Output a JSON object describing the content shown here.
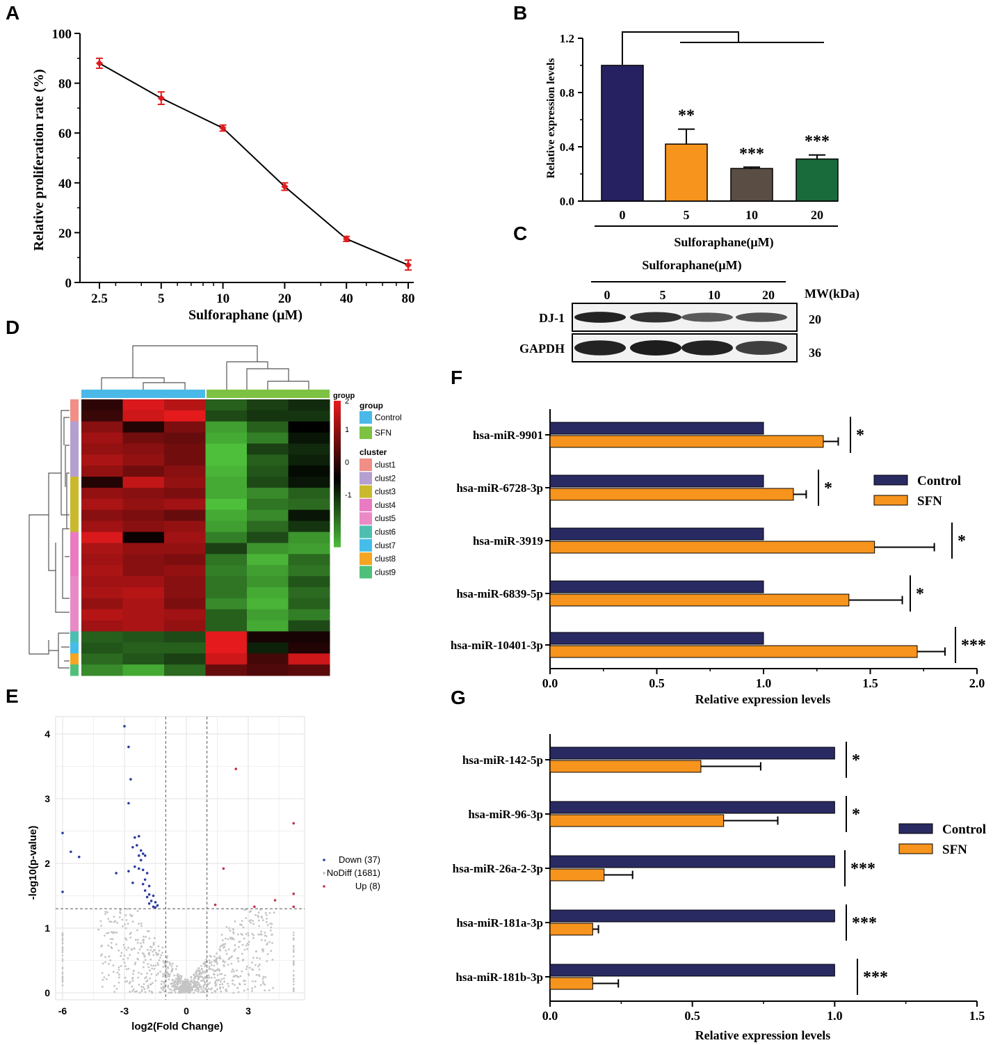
{
  "panel_letters": [
    "A",
    "B",
    "C",
    "D",
    "E",
    "F",
    "G"
  ],
  "colors": {
    "navy": "#262262",
    "orange": "#f7941d",
    "gray_brown": "#5a4d44",
    "dark_green": "#1a6b3c",
    "red_marker": "#e31a1c",
    "control_bar": "#2a2a63",
    "heat_high": "#e41a1c",
    "heat_low": "#4dbf3a",
    "control_group": "#4ab9e8",
    "sfn_group": "#7dc242"
  },
  "chart_data": [
    {
      "panel": "A",
      "type": "line",
      "ylabel": "Relative proliferation rate (%)",
      "xlabel": "Sulforaphane (μM)",
      "x": [
        2.5,
        5,
        10,
        20,
        40,
        80
      ],
      "x_tick_labels": [
        "2.5",
        "5",
        "10",
        "20",
        "40",
        "80"
      ],
      "values": [
        88,
        74,
        62,
        38.5,
        17.5,
        7
      ],
      "errors": [
        2,
        2.5,
        1.2,
        1.5,
        1,
        2
      ],
      "ylim": [
        0,
        100
      ],
      "y_ticks": [
        0,
        20,
        40,
        60,
        80,
        100
      ]
    },
    {
      "panel": "B",
      "type": "bar",
      "ylabel": "Relative expression levels",
      "xlabel": "Sulforaphane(μM)",
      "categories": [
        "0",
        "5",
        "10",
        "20"
      ],
      "values": [
        1.0,
        0.42,
        0.24,
        0.31
      ],
      "errors": [
        0,
        0.11,
        0.01,
        0.03
      ],
      "significance": [
        "",
        "**",
        "***",
        "***"
      ],
      "ylim": [
        0,
        1.2
      ],
      "y_ticks": [
        "0.0",
        "0.4",
        "0.8",
        "1.2"
      ]
    },
    {
      "panel": "F",
      "type": "bar",
      "orientation": "horizontal",
      "xlabel": "Relative expression levels",
      "categories": [
        "hsa-miR-9901",
        "hsa-miR-6728-3p",
        "hsa-miR-3919",
        "hsa-miR-6839-5p",
        "hsa-miR-10401-3p"
      ],
      "series": [
        {
          "name": "Control",
          "values": [
            1,
            1,
            1,
            1,
            1
          ],
          "errors": [
            0,
            0,
            0,
            0,
            0
          ]
        },
        {
          "name": "SFN",
          "values": [
            1.28,
            1.14,
            1.52,
            1.4,
            1.72
          ],
          "errors": [
            0.07,
            0.06,
            0.28,
            0.25,
            0.13
          ]
        }
      ],
      "significance": [
        "*",
        "*",
        "*",
        "*",
        "***"
      ],
      "xlim": [
        0,
        2.0
      ],
      "x_ticks": [
        "0.0",
        "0.5",
        "1.0",
        "1.5",
        "2.0"
      ]
    },
    {
      "panel": "G",
      "type": "bar",
      "orientation": "horizontal",
      "xlabel": "Relative expression levels",
      "categories": [
        "hsa-miR-142-5p",
        "hsa-miR-96-3p",
        "hsa-miR-26a-2-3p",
        "hsa-miR-181a-3p",
        "hsa-miR-181b-3p"
      ],
      "series": [
        {
          "name": "Control",
          "values": [
            1,
            1,
            1,
            1,
            1
          ],
          "errors": [
            0,
            0,
            0,
            0,
            0
          ]
        },
        {
          "name": "SFN",
          "values": [
            0.53,
            0.61,
            0.19,
            0.15,
            0.15
          ],
          "errors": [
            0.21,
            0.19,
            0.1,
            0.02,
            0.09
          ]
        }
      ],
      "significance": [
        "*",
        "*",
        "***",
        "***",
        "***"
      ],
      "xlim": [
        0,
        1.5
      ],
      "x_ticks": [
        "0.0",
        "0.5",
        "1.0",
        "1.5"
      ]
    },
    {
      "panel": "E",
      "type": "scatter",
      "xlabel": "log2(Fold Change)",
      "ylabel": "-log10(p-value)",
      "x_ticks": [
        "-6",
        "-3",
        "0",
        "3"
      ],
      "y_ticks": [
        "0",
        "1",
        "2",
        "3",
        "4"
      ],
      "xlim": [
        -6.3,
        5.6
      ],
      "ylim": [
        -0.1,
        4.3
      ],
      "thresholds": {
        "log2fc": [
          -1,
          1
        ],
        "neg_log10_p": 1.3
      },
      "legend": [
        {
          "label": "Down (37)",
          "color": "#2b3b9c"
        },
        {
          "label": "NoDiff (1681)",
          "color": "#bdbdbd"
        },
        {
          "label": "Up (8)",
          "color": "#c4314b"
        }
      ],
      "down_points": [
        [
          -3.0,
          4.12
        ],
        [
          -2.8,
          3.8
        ],
        [
          -2.7,
          3.3
        ],
        [
          -2.8,
          2.93
        ],
        [
          -6.0,
          2.47
        ],
        [
          -5.6,
          2.18
        ],
        [
          -5.2,
          2.1
        ],
        [
          -2.5,
          2.4
        ],
        [
          -2.3,
          2.42
        ],
        [
          -2.6,
          2.25
        ],
        [
          -2.4,
          2.28
        ],
        [
          -2.2,
          2.2
        ],
        [
          -2.1,
          2.15
        ],
        [
          -2.3,
          2.12
        ],
        [
          -2.0,
          2.12
        ],
        [
          -2.2,
          2.05
        ],
        [
          -3.4,
          1.85
        ],
        [
          -2.8,
          1.88
        ],
        [
          -2.5,
          1.95
        ],
        [
          -2.3,
          1.92
        ],
        [
          -2.1,
          1.9
        ],
        [
          -1.9,
          1.85
        ],
        [
          -2.0,
          1.75
        ],
        [
          -2.1,
          1.68
        ],
        [
          -1.8,
          1.65
        ],
        [
          -2.6,
          1.7
        ],
        [
          -2.0,
          1.58
        ],
        [
          -1.8,
          1.52
        ],
        [
          -1.6,
          1.5
        ],
        [
          -1.9,
          1.48
        ],
        [
          -1.7,
          1.42
        ],
        [
          -1.5,
          1.4
        ],
        [
          -1.6,
          1.33
        ],
        [
          -1.4,
          1.35
        ],
        [
          -1.8,
          1.38
        ],
        [
          -6.0,
          1.56
        ],
        [
          -1.5,
          1.32
        ]
      ],
      "up_points": [
        [
          2.4,
          3.46
        ],
        [
          5.2,
          2.62
        ],
        [
          1.8,
          1.92
        ],
        [
          5.2,
          1.53
        ],
        [
          4.3,
          1.43
        ],
        [
          3.3,
          1.33
        ],
        [
          5.2,
          1.33
        ],
        [
          1.4,
          1.36
        ]
      ]
    }
  ],
  "panel_c": {
    "title": "Sulforaphane(μM)",
    "lanes": [
      "0",
      "5",
      "10",
      "20"
    ],
    "mw_header": "MW(kDa)",
    "bands": [
      {
        "label": "DJ-1",
        "mw": "20",
        "intensities": [
          0.95,
          0.85,
          0.55,
          0.6
        ]
      },
      {
        "label": "GAPDH",
        "mw": "36",
        "intensities": [
          0.95,
          1.0,
          0.95,
          0.75
        ]
      }
    ]
  },
  "panel_d": {
    "group_title": "group",
    "cluster_title": "cluster",
    "groups": [
      {
        "label": "Control",
        "color": "#4ab9e8"
      },
      {
        "label": "SFN",
        "color": "#7dc242"
      }
    ],
    "clusters": [
      {
        "label": "clust1",
        "color": "#f08f86"
      },
      {
        "label": "clust2",
        "color": "#b59fd0"
      },
      {
        "label": "clust3",
        "color": "#c9b92c"
      },
      {
        "label": "clust4",
        "color": "#e87bc2"
      },
      {
        "label": "clust5",
        "color": "#e98ac6"
      },
      {
        "label": "clust6",
        "color": "#4dbfb0"
      },
      {
        "label": "clust7",
        "color": "#46bde9"
      },
      {
        "label": "clust8",
        "color": "#f4a622"
      },
      {
        "label": "clust9",
        "color": "#4fc07a"
      }
    ],
    "scale_title": "group",
    "scale_ticks": [
      "2",
      "1",
      "0",
      "-1"
    ],
    "row_clusters": [
      0,
      0,
      1,
      1,
      1,
      1,
      1,
      2,
      2,
      2,
      2,
      2,
      3,
      3,
      3,
      3,
      4,
      4,
      4,
      4,
      4,
      5,
      6,
      7,
      8
    ],
    "matrix": [
      [
        0.4,
        1.9,
        1.6,
        -0.9,
        -0.6,
        -0.4
      ],
      [
        0.5,
        1.8,
        2.0,
        -0.7,
        -0.5,
        -0.5
      ],
      [
        1.2,
        0.3,
        1.1,
        -1.5,
        -0.9,
        0.0
      ],
      [
        1.4,
        1.0,
        0.9,
        -1.6,
        -1.2,
        -0.2
      ],
      [
        1.3,
        1.2,
        1.0,
        -1.8,
        -0.6,
        -0.4
      ],
      [
        1.5,
        1.3,
        1.0,
        -1.8,
        -0.9,
        -0.3
      ],
      [
        1.3,
        1.0,
        1.2,
        -1.7,
        -0.8,
        -0.1
      ],
      [
        0.3,
        1.7,
        1.3,
        -1.6,
        -0.7,
        -0.2
      ],
      [
        1.3,
        1.2,
        1.1,
        -1.6,
        -1.3,
        -0.9
      ],
      [
        1.5,
        1.3,
        1.4,
        -1.8,
        -1.1,
        -1.0
      ],
      [
        1.2,
        1.1,
        0.9,
        -1.6,
        -1.3,
        -0.2
      ],
      [
        1.4,
        1.2,
        1.3,
        -1.5,
        -1.0,
        -0.5
      ],
      [
        1.9,
        0.1,
        1.4,
        -1.2,
        -0.7,
        -1.4
      ],
      [
        1.5,
        1.3,
        1.3,
        -0.6,
        -1.4,
        -1.5
      ],
      [
        1.4,
        1.2,
        1.1,
        -1.1,
        -1.7,
        -1.0
      ],
      [
        1.5,
        1.2,
        1.3,
        -1.2,
        -1.5,
        -1.1
      ],
      [
        1.4,
        1.4,
        1.2,
        -1.1,
        -1.4,
        -0.8
      ],
      [
        1.5,
        1.6,
        1.2,
        -1.1,
        -1.6,
        -1.0
      ],
      [
        1.3,
        1.5,
        1.1,
        -1.3,
        -1.7,
        -0.9
      ],
      [
        1.6,
        1.5,
        1.4,
        -0.9,
        -1.5,
        -1.2
      ],
      [
        1.4,
        1.5,
        1.3,
        -0.9,
        -1.6,
        -0.7
      ],
      [
        -0.9,
        -0.8,
        -0.7,
        2.0,
        0.2,
        0.2
      ],
      [
        -0.8,
        -0.9,
        -0.9,
        2.0,
        -0.3,
        0.3
      ],
      [
        -1.0,
        -0.8,
        -0.6,
        1.8,
        0.6,
        1.8
      ],
      [
        -1.3,
        -1.6,
        -1.0,
        0.9,
        0.7,
        0.8
      ]
    ]
  }
}
